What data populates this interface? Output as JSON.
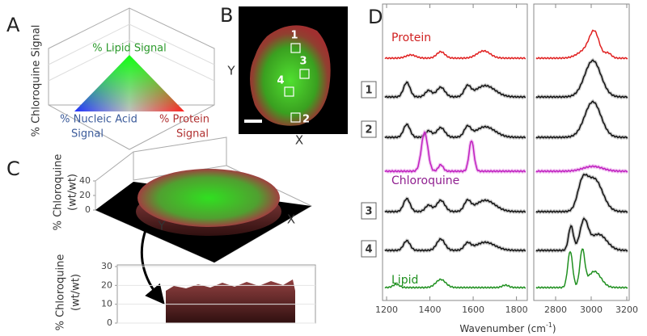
{
  "panels": {
    "a": {
      "label": "A",
      "axis_label": "% Chloroquine Signal",
      "lipid": "% Lipid Signal",
      "nucleic": [
        "% Nucleic Acid",
        "Signal"
      ],
      "protein": [
        "% Protein",
        "Signal"
      ]
    },
    "b": {
      "label": "B",
      "y_label": "Y",
      "x_label": "X",
      "regions": [
        "1",
        "2",
        "3",
        "4"
      ]
    },
    "c": {
      "label": "C",
      "top": {
        "z_label": [
          "% Chloroquine",
          "(wt/wt)"
        ],
        "zlim": [
          0,
          40
        ],
        "zticks": [
          0,
          20,
          40
        ],
        "x_label": "X",
        "y_label": "Y"
      },
      "bottom": {
        "y_label": [
          "% Chloroquine",
          "(wt/wt)"
        ],
        "ylim": [
          0,
          30
        ],
        "yticks": [
          0,
          10,
          20,
          30
        ]
      }
    },
    "d": {
      "label": "D",
      "spectra": [
        "Protein",
        "1",
        "2",
        "Chloroquine",
        "3",
        "4",
        "Lipid"
      ],
      "x_label": {
        "text": "Wavenumber (cm",
        "sup": "-1",
        "tail": ")"
      },
      "left": {
        "xlim": [
          1200,
          1850
        ],
        "xticks": [
          1200,
          1400,
          1600,
          1800
        ]
      },
      "right": {
        "xlim": [
          2700,
          3200
        ],
        "xticks": [
          2800,
          3000,
          3200
        ]
      }
    }
  }
}
